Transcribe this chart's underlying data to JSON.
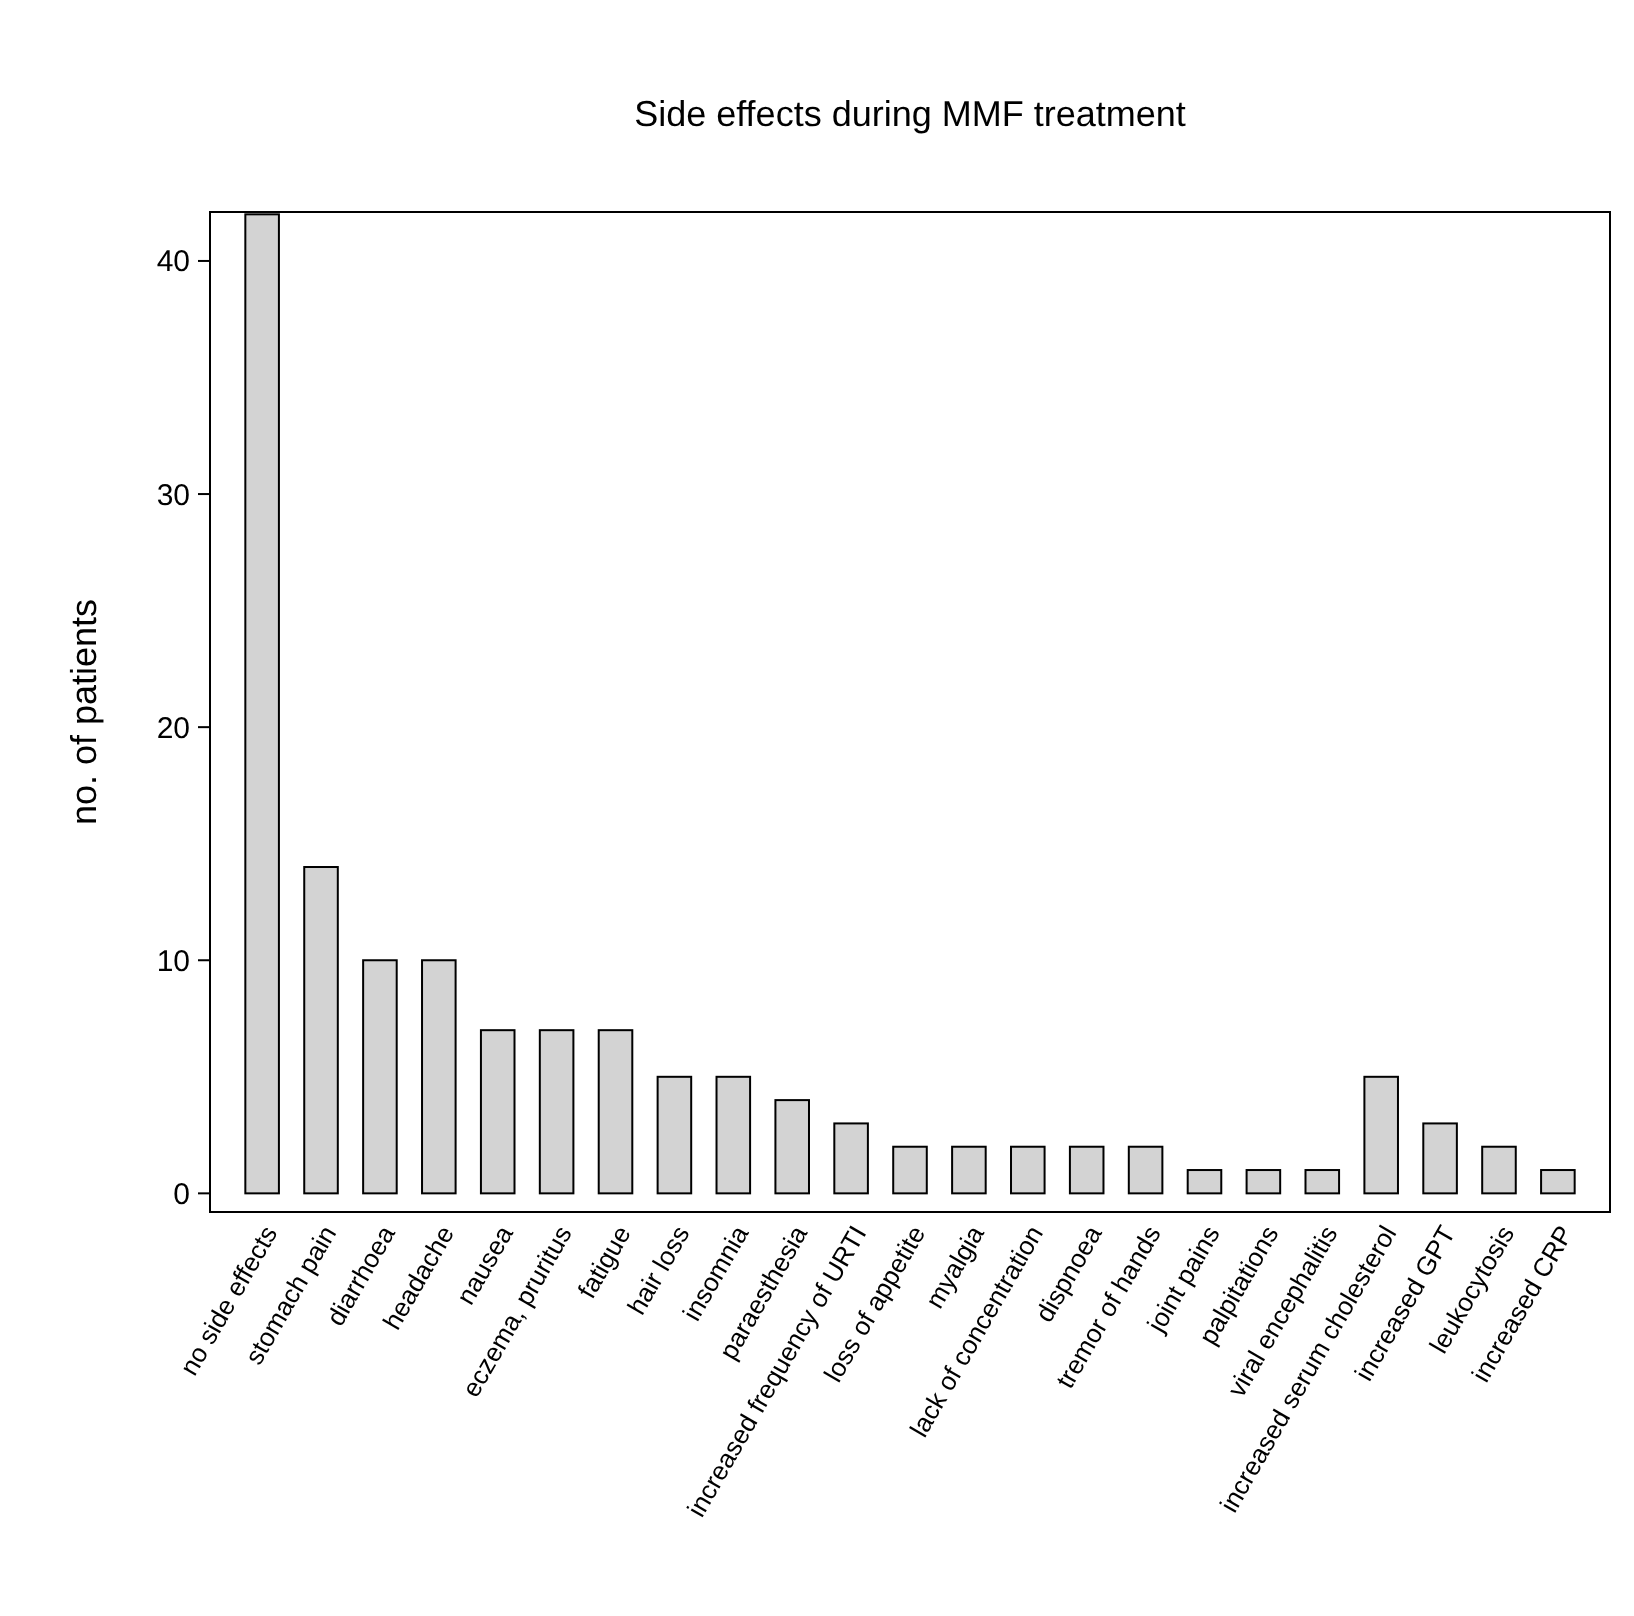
{
  "chart_data": {
    "type": "bar",
    "title": "Side effects during MMF treatment",
    "ylabel": "no. of patients",
    "categories": [
      "no side effects",
      "stomach pain",
      "diarrhoea",
      "headache",
      "nausea",
      "eczema, pruritus",
      "fatigue",
      "hair loss",
      "insomnia",
      "paraesthesia",
      "increased frequency of URTI",
      "loss of appetite",
      "myalgia",
      "lack of concentration",
      "dispnoea",
      "tremor of hands",
      "joint pains",
      "palpitations",
      "viral encephalitis",
      "increased serum cholesterol",
      "increased GPT",
      "leukocytosis",
      "increased CRP"
    ],
    "values": [
      42,
      14,
      10,
      10,
      7,
      7,
      7,
      5,
      5,
      4,
      3,
      2,
      2,
      2,
      2,
      2,
      1,
      1,
      1,
      5,
      3,
      2,
      1
    ],
    "color": "#d3d3d3",
    "ylim": [
      -0.8,
      42.1
    ],
    "yticks": [
      0,
      10,
      20,
      30,
      40
    ]
  }
}
